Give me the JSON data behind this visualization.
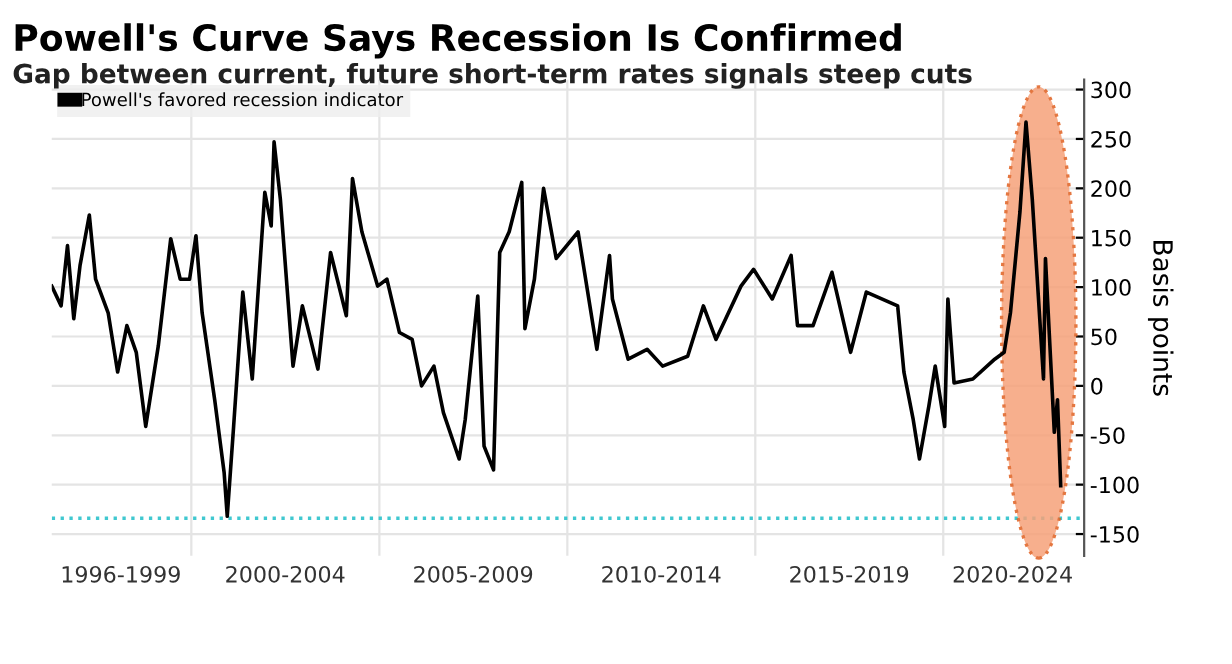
{
  "chart_data": {
    "type": "line",
    "title": "Powell's Curve Says Recession Is Confirmed",
    "subtitle": "Gap between current, future short-term rates signals steep cuts",
    "ylabel": "Basis points",
    "x": [
      "1996-04-15",
      "1996-07-15",
      "1996-09-15",
      "1996-11-15",
      "1997-01-15",
      "1997-04-15",
      "1997-06-15",
      "1997-10-15",
      "1998-01-15",
      "1998-04-15",
      "1998-07-15",
      "1998-10-15",
      "1999-02-15",
      "1999-06-15",
      "1999-09-15",
      "1999-12-15",
      "2000-02-15",
      "2000-04-15",
      "2000-08-15",
      "2000-11-15",
      "2000-12-15",
      "2001-02-15",
      "2001-05-15",
      "2001-08-15",
      "2001-12-15",
      "2002-02-15",
      "2002-03-15",
      "2002-05-15",
      "2002-09-15",
      "2002-12-15",
      "2003-05-15",
      "2003-09-15",
      "2004-02-15",
      "2004-04-15",
      "2004-07-15",
      "2004-12-15",
      "2005-03-15",
      "2005-07-15",
      "2005-11-15",
      "2006-02-15",
      "2006-06-15",
      "2006-09-15",
      "2007-02-15",
      "2007-04-15",
      "2007-08-15",
      "2007-10-15",
      "2008-01-15",
      "2008-03-15",
      "2008-06-15",
      "2008-10-15",
      "2008-11-15",
      "2009-02-15",
      "2009-05-15",
      "2009-09-15",
      "2010-04-15",
      "2010-10-15",
      "2011-02-15",
      "2011-03-15",
      "2011-08-15",
      "2012-02-15",
      "2012-07-15",
      "2013-03-15",
      "2013-08-15",
      "2013-12-15",
      "2014-08-15",
      "2014-12-15",
      "2015-06-15",
      "2015-12-15",
      "2016-02-15",
      "2016-07-15",
      "2017-01-15",
      "2017-07-15",
      "2017-12-15",
      "2018-10-15",
      "2018-12-15",
      "2019-03-15",
      "2019-05-15",
      "2019-08-15",
      "2019-10-15",
      "2020-01-15",
      "2020-02-15",
      "2020-04-15",
      "2020-10-15",
      "2021-05-15",
      "2021-08-15",
      "2021-10-15",
      "2022-01-15",
      "2022-03-15",
      "2022-05-15",
      "2022-09-01",
      "2022-09-20",
      "2022-12-15",
      "2023-01-15",
      "2023-02-15"
    ],
    "series": [
      {
        "name": "Powell's favored recession indicator",
        "color": "#000000",
        "values": [
          101,
          81,
          142,
          68,
          122,
          173,
          108,
          74,
          14,
          61,
          34,
          -41,
          41,
          149,
          108,
          108,
          152,
          74,
          -14,
          -88,
          -132,
          -41,
          95,
          7,
          196,
          162,
          247,
          189,
          20,
          81,
          17,
          135,
          71,
          210,
          156,
          101,
          108,
          54,
          47,
          0,
          20,
          -27,
          -74,
          -34,
          91,
          -61,
          -85,
          135,
          156,
          206,
          58,
          108,
          200,
          129,
          156,
          37,
          132,
          88,
          27,
          37,
          20,
          30,
          81,
          47,
          101,
          118,
          88,
          132,
          61,
          61,
          115,
          34,
          95,
          81,
          14,
          -34,
          -74,
          -20,
          20,
          -41,
          88,
          3,
          7,
          27,
          34,
          74,
          176,
          267,
          189,
          7,
          129,
          -47,
          -14,
          -101
        ]
      }
    ],
    "xlim": [
      "1996-04-15",
      "2023-10-01"
    ],
    "xticks": [
      {
        "value": "2000-01-01",
        "label": null
      },
      {
        "value": "2005-01-01",
        "label": null
      },
      {
        "value": "2010-01-01",
        "label": null
      },
      {
        "value": "2015-01-01",
        "label": null
      },
      {
        "value": "2020-01-01",
        "label": null
      },
      {
        "value": "1998-02-15",
        "label": "1996-1999"
      },
      {
        "value": "2002-07-01",
        "label": "2000-2004"
      },
      {
        "value": "2007-07-01",
        "label": "2005-2009"
      },
      {
        "value": "2012-07-01",
        "label": "2010-2014"
      },
      {
        "value": "2017-07-01",
        "label": "2015-2019"
      },
      {
        "value": "2021-11-05",
        "label": "2020-2024"
      }
    ],
    "ylim": [
      -172,
      310
    ],
    "yticks": [
      -150,
      -100,
      -50,
      0,
      50,
      100,
      150,
      200,
      250,
      300
    ],
    "ref_lines": [
      {
        "axis": "y",
        "value": -134,
        "color": "#40c8d0",
        "line_style": "dotted"
      }
    ],
    "grid": true,
    "legend": "top left",
    "line_style": "solid"
  }
}
